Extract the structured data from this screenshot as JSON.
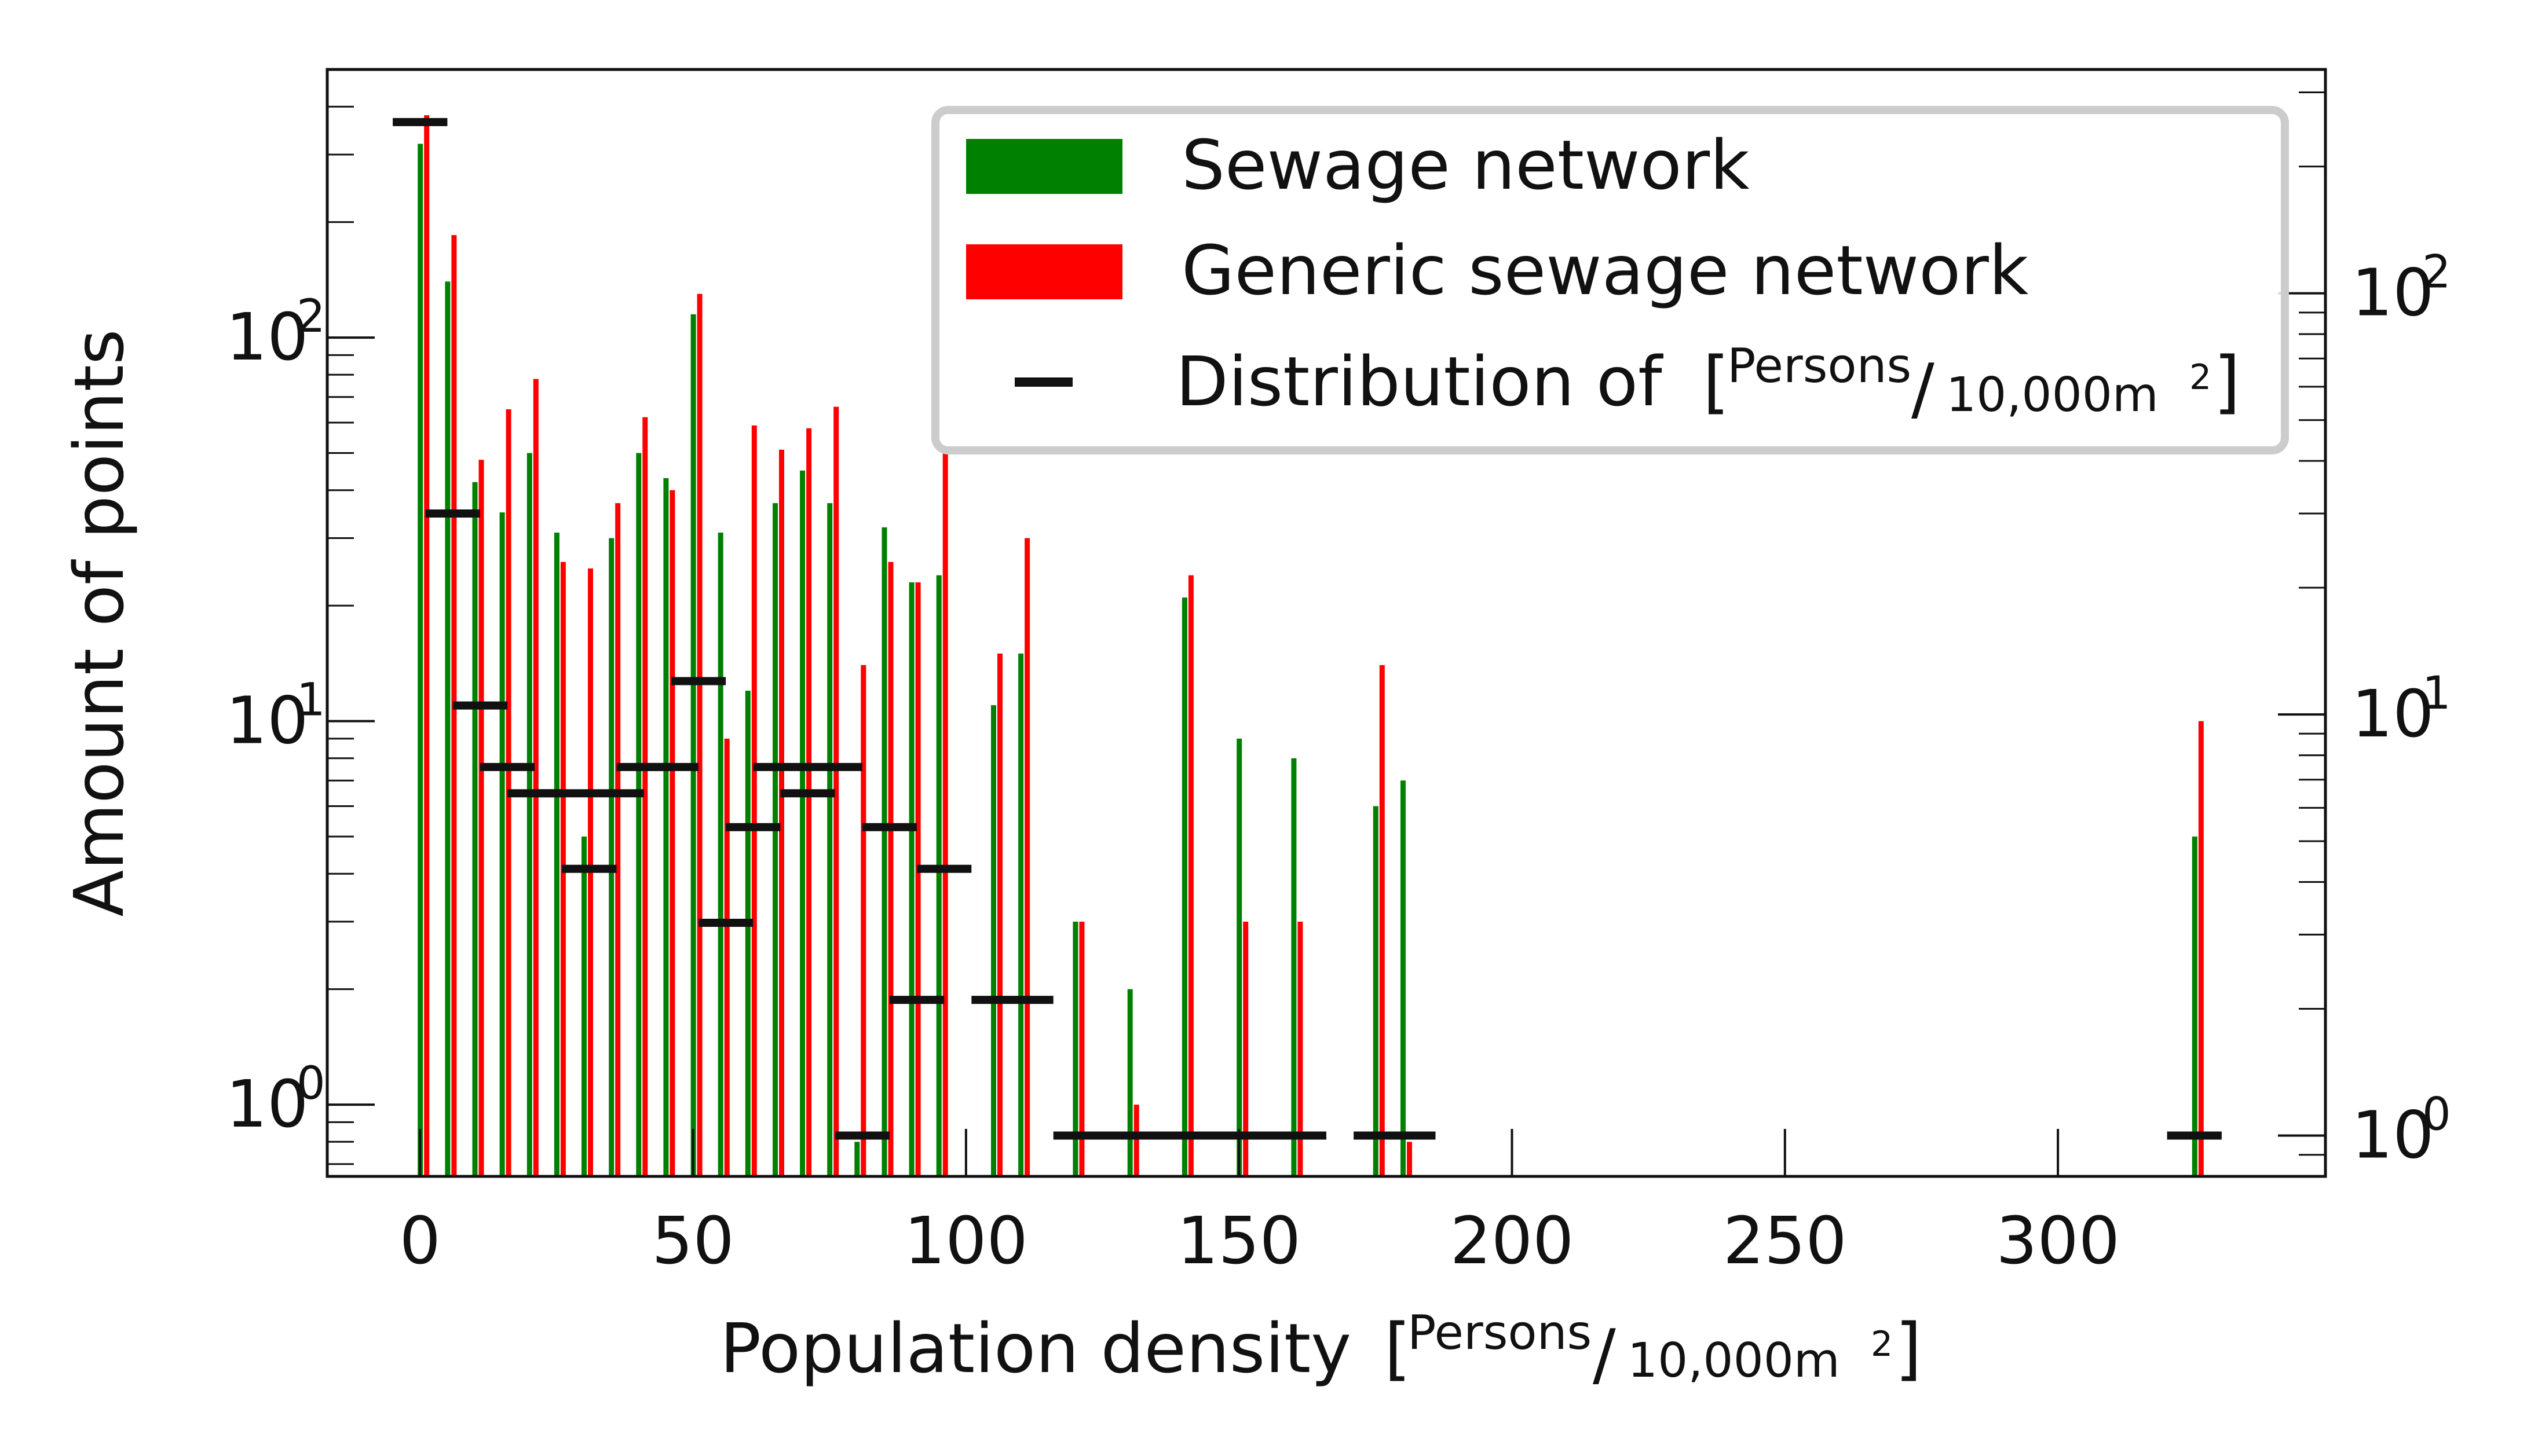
{
  "chart_data": {
    "type": "bar",
    "xlabel": "Population density [Persons/10,000m2]",
    "xlabel_parts": {
      "main": "Population density",
      "unit_num": "Persons",
      "unit_den": "10,000m",
      "unit_exp": "2"
    },
    "ylabel": "Amount of points",
    "y_scale": "log",
    "xlim": [
      -17,
      349
    ],
    "ylim_left": [
      0.65,
      500
    ],
    "ylim_right": [
      0.8,
      340
    ],
    "x_ticks": [
      0,
      50,
      100,
      150,
      200,
      250,
      300
    ],
    "x_tick_labels": [
      "0",
      "50",
      "100",
      "150",
      "200",
      "250",
      "300"
    ],
    "y_ticks_left": [
      {
        "value": 1,
        "label": "10",
        "exp": "0"
      },
      {
        "value": 10,
        "label": "10",
        "exp": "1"
      },
      {
        "value": 100,
        "label": "10",
        "exp": "2"
      }
    ],
    "y_ticks_right": [
      {
        "value": 1,
        "label": "10",
        "exp": "0"
      },
      {
        "value": 10,
        "label": "10",
        "exp": "1"
      },
      {
        "value": 100,
        "label": "10",
        "exp": "2"
      }
    ],
    "legend_position": "top-right",
    "grid": false,
    "series": [
      {
        "name": "Sewage network",
        "color": "#008000",
        "axis": "left",
        "x": [
          0,
          5,
          10,
          15,
          20,
          25,
          30,
          35,
          40,
          45,
          50,
          55,
          60,
          65,
          70,
          75,
          80,
          85,
          90,
          95,
          105,
          110,
          120,
          130,
          140,
          150,
          160,
          175,
          180,
          325
        ],
        "values": [
          320,
          140,
          42,
          35,
          50,
          31,
          5,
          30,
          50,
          43,
          115,
          31,
          12,
          37,
          45,
          37,
          0.8,
          32,
          23,
          24,
          11,
          15,
          3,
          2,
          21,
          9,
          8,
          6,
          7,
          5
        ]
      },
      {
        "name": "Generic sewage network",
        "color": "#ff0000",
        "axis": "left",
        "x": [
          0,
          5,
          10,
          15,
          20,
          25,
          30,
          35,
          40,
          45,
          50,
          55,
          60,
          65,
          70,
          75,
          80,
          85,
          90,
          95,
          105,
          110,
          120,
          130,
          140,
          150,
          160,
          175,
          180,
          325
        ],
        "values": [
          380,
          185,
          48,
          65,
          78,
          26,
          25,
          37,
          62,
          40,
          130,
          9,
          59,
          51,
          58,
          66,
          14,
          26,
          23,
          52,
          15,
          30,
          3,
          1,
          24,
          3,
          3,
          14,
          0.8,
          10
        ]
      },
      {
        "name": "Distribution of [Persons/10,000m2]",
        "legend_label_parts": {
          "main": "Distribution of",
          "unit_num": "Persons",
          "unit_den": "10,000m",
          "unit_exp": "2"
        },
        "color": "#111111",
        "axis": "right",
        "style": "horizontal-segments",
        "segments": [
          {
            "x_start": -5,
            "x_end": 5,
            "value": 255
          },
          {
            "x_start": 1,
            "x_end": 11,
            "value": 30
          },
          {
            "x_start": 6,
            "x_end": 16,
            "value": 10.5
          },
          {
            "x_start": 11,
            "x_end": 21,
            "value": 7.5
          },
          {
            "x_start": 16,
            "x_end": 26,
            "value": 6.5
          },
          {
            "x_start": 21,
            "x_end": 31,
            "value": 6.5
          },
          {
            "x_start": 26,
            "x_end": 36,
            "value": 4.3
          },
          {
            "x_start": 31,
            "x_end": 41,
            "value": 6.5
          },
          {
            "x_start": 36,
            "x_end": 46,
            "value": 7.5
          },
          {
            "x_start": 41,
            "x_end": 51,
            "value": 7.5
          },
          {
            "x_start": 46,
            "x_end": 56,
            "value": 12
          },
          {
            "x_start": 51,
            "x_end": 61,
            "value": 3.2
          },
          {
            "x_start": 56,
            "x_end": 66,
            "value": 5.4
          },
          {
            "x_start": 61,
            "x_end": 71,
            "value": 7.5
          },
          {
            "x_start": 66,
            "x_end": 76,
            "value": 6.5
          },
          {
            "x_start": 71,
            "x_end": 81,
            "value": 7.5
          },
          {
            "x_start": 76,
            "x_end": 86,
            "value": 1
          },
          {
            "x_start": 81,
            "x_end": 91,
            "value": 5.4
          },
          {
            "x_start": 86,
            "x_end": 96,
            "value": 2.1
          },
          {
            "x_start": 91,
            "x_end": 101,
            "value": 4.3
          },
          {
            "x_start": 101,
            "x_end": 116,
            "value": 2.1
          },
          {
            "x_start": 116,
            "x_end": 131,
            "value": 1
          },
          {
            "x_start": 131,
            "x_end": 151,
            "value": 1
          },
          {
            "x_start": 151,
            "x_end": 166,
            "value": 1
          },
          {
            "x_start": 171,
            "x_end": 186,
            "value": 1
          },
          {
            "x_start": 320,
            "x_end": 330,
            "value": 1
          }
        ]
      }
    ]
  }
}
